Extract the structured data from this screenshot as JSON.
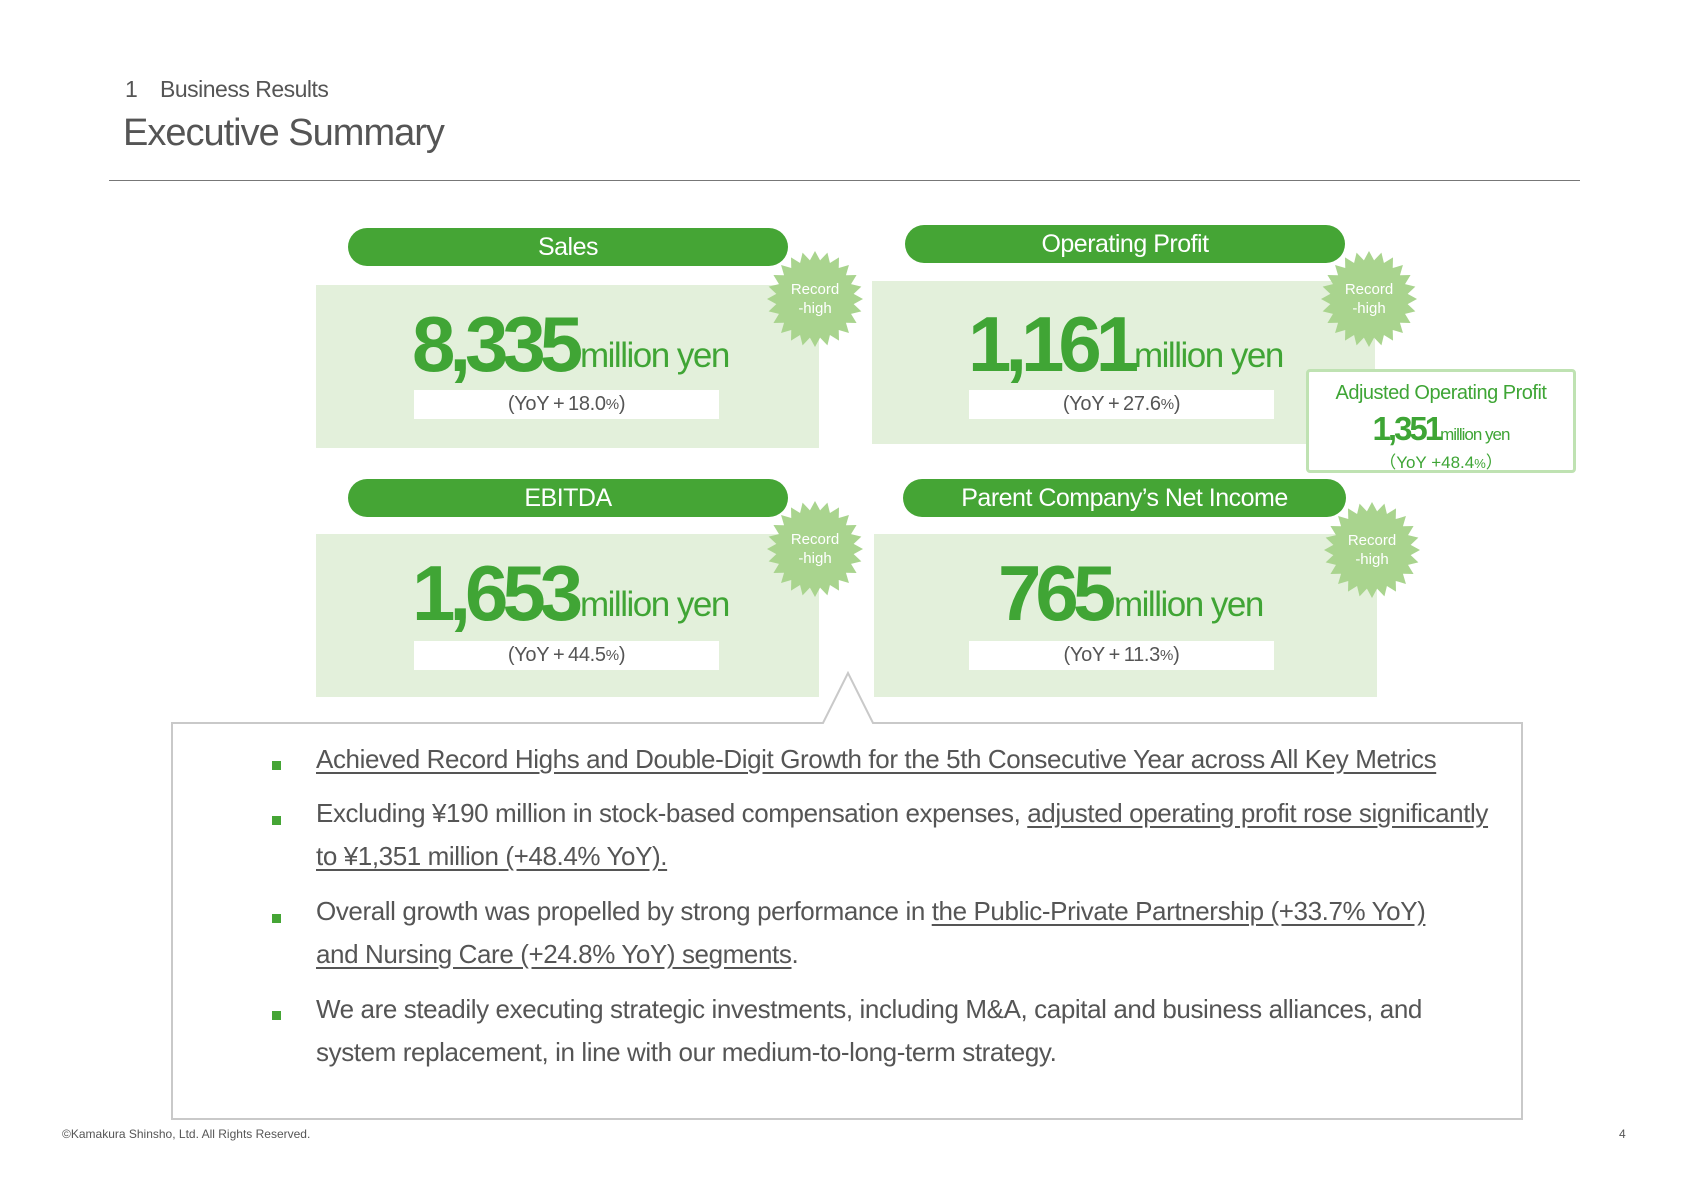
{
  "header": {
    "section_number": "1",
    "section_name": "Business Results",
    "title": "Executive Summary"
  },
  "metrics": {
    "sales": {
      "label": "Sales",
      "value": "8,335",
      "unit": "million yen",
      "yoy_prefix": "(YoY + 18.0",
      "yoy_pct": "%",
      "yoy_suffix": ")",
      "badge_line1": "Record",
      "badge_line2": "-high"
    },
    "operating_profit": {
      "label": "Operating Profit",
      "value": "1,161",
      "unit": "million yen",
      "yoy_prefix": "(YoY + 27.6",
      "yoy_pct": "%",
      "yoy_suffix": ")",
      "badge_line1": "Record",
      "badge_line2": "-high"
    },
    "ebitda": {
      "label": "EBITDA",
      "value": "1,653",
      "unit": "million yen",
      "yoy_prefix": "(YoY + 44.5",
      "yoy_pct": "%",
      "yoy_suffix": ")",
      "badge_line1": "Record",
      "badge_line2": "-high"
    },
    "net_income": {
      "label": "Parent Company’s Net Income",
      "value": "765",
      "unit": "million yen",
      "yoy_prefix": "(YoY + 11.3",
      "yoy_pct": "%",
      "yoy_suffix": ")",
      "badge_line1": "Record",
      "badge_line2": "-high"
    }
  },
  "adjusted_operating_profit": {
    "title": "Adjusted Operating Profit",
    "value": "1,351",
    "unit": "million yen",
    "yoy_prefix": "（YoY +48.4",
    "yoy_pct": "%",
    "yoy_suffix": "）"
  },
  "summary": {
    "b1_u": "Achieved Record Highs and Double-Digit Growth for the 5th Consecutive Year across All Key Metrics",
    "b2_pre": "Excluding ¥190 million in stock-based compensation expenses, ",
    "b2_u1": "adjusted operating profit rose significantly",
    "b2_u2": "to ¥1,351 million (+48.4% YoY).",
    "b3_pre": "Overall growth was propelled by strong performance in ",
    "b3_u1": "the Public-Private Partnership (+33.7% YoY)",
    "b3_u2": "and Nursing Care (+24.8% YoY) segments",
    "b3_post": ".",
    "b4_l1": "We are steadily executing strategic investments, including M&A, capital and business alliances, and",
    "b4_l2": "system replacement, in line with our medium-to-long-term strategy."
  },
  "footer": {
    "copyright": "©Kamakura Shinsho, Ltd. All Rights Reserved.",
    "page_number": "4"
  },
  "colors": {
    "accent_green": "#45a535",
    "card_bg": "#e3f0db",
    "badge_green": "#a9d48e"
  },
  "icons": {
    "badge": "starburst-badge-icon",
    "bullet": "square-bullet-icon"
  }
}
